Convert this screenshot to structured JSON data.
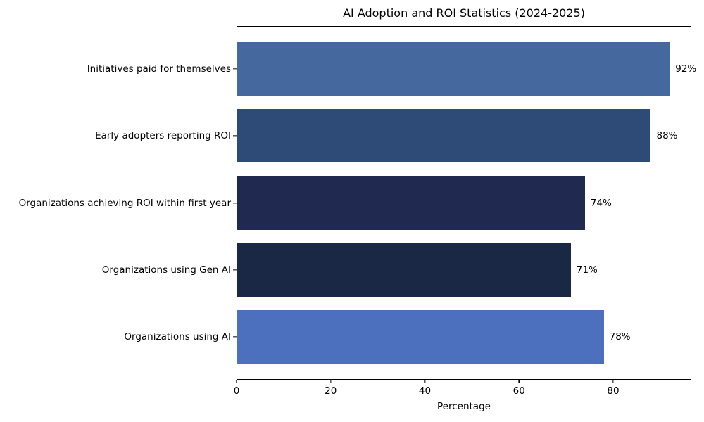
{
  "chart_data": {
    "type": "bar",
    "orientation": "horizontal",
    "title": "AI Adoption and ROI Statistics (2024-2025)",
    "xlabel": "Percentage",
    "ylabel": "",
    "categories": [
      "Initiatives paid for themselves",
      "Early adopters reporting ROI",
      "Organizations achieving ROI within first year",
      "Organizations using Gen AI",
      "Organizations using AI"
    ],
    "values": [
      92,
      88,
      74,
      71,
      78
    ],
    "value_labels": [
      "92%",
      "88%",
      "74%",
      "71%",
      "78%"
    ],
    "bar_colors": [
      "#45699E",
      "#2E4A76",
      "#20294F",
      "#1A2845",
      "#4C70BE"
    ],
    "xlim": [
      0,
      96.6
    ],
    "xticks": [
      0,
      20,
      40,
      60,
      80
    ],
    "grid": false,
    "legend": "none",
    "axis_color": "#000000",
    "text_color": "#000000",
    "background_color": "#ffffff"
  }
}
